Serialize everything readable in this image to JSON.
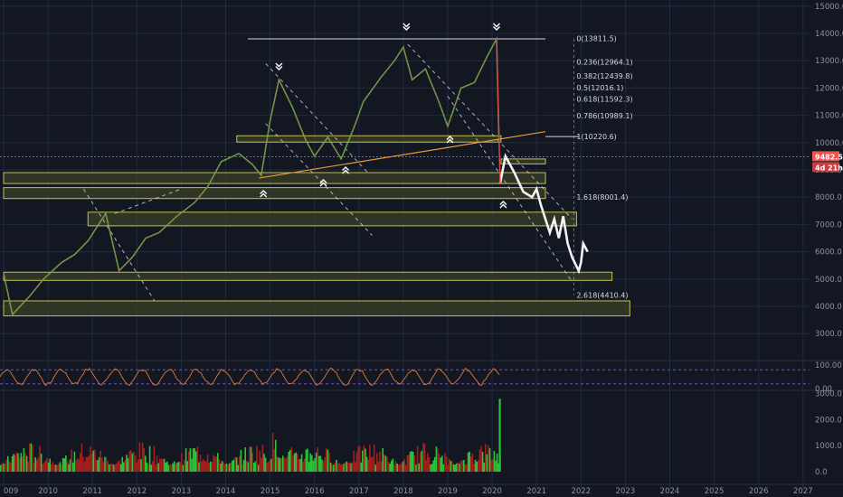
{
  "colors": {
    "background": "#131722",
    "grid": "#1f2a44",
    "price_line": "#ef5350",
    "zone_fill": "#3a3f25",
    "zone_stroke": "#c2c14e",
    "trend": "#e0e0e0",
    "trendline_orange": "#e89a3c",
    "rsi": "#e07b39",
    "vol_up": "#26c638",
    "vol_down": "#a31f1f",
    "arrow": "#ffffff"
  },
  "chart_data": [
    {
      "type": "line",
      "x_ticks": [
        "009",
        "2010",
        "2011",
        "2012",
        "2013",
        "2014",
        "2015",
        "2016",
        "2017",
        "2018",
        "2019",
        "2020",
        "2021",
        "2022",
        "2023",
        "2024",
        "2025",
        "2026",
        "2027"
      ],
      "y_ticks": [
        "15000.0",
        "14000.0",
        "13000.0",
        "12000.0",
        "11000.0",
        "10000.0",
        "9000.0",
        "8000.0",
        "7000.0",
        "6000.0",
        "5000.0",
        "4000.0",
        "3000.0"
      ],
      "price_path": [
        {
          "x": 2009.0,
          "y": 5200
        },
        {
          "x": 2009.2,
          "y": 3700
        },
        {
          "x": 2009.6,
          "y": 4400
        },
        {
          "x": 2009.9,
          "y": 5000
        },
        {
          "x": 2010.3,
          "y": 5600
        },
        {
          "x": 2010.6,
          "y": 5900
        },
        {
          "x": 2010.9,
          "y": 6400
        },
        {
          "x": 2011.3,
          "y": 7400
        },
        {
          "x": 2011.6,
          "y": 5300
        },
        {
          "x": 2011.9,
          "y": 5800
        },
        {
          "x": 2012.2,
          "y": 6500
        },
        {
          "x": 2012.5,
          "y": 6700
        },
        {
          "x": 2012.9,
          "y": 7300
        },
        {
          "x": 2013.3,
          "y": 7800
        },
        {
          "x": 2013.6,
          "y": 8400
        },
        {
          "x": 2013.9,
          "y": 9300
        },
        {
          "x": 2014.3,
          "y": 9600
        },
        {
          "x": 2014.6,
          "y": 9200
        },
        {
          "x": 2014.8,
          "y": 8800
        },
        {
          "x": 2015.0,
          "y": 10800
        },
        {
          "x": 2015.2,
          "y": 12300
        },
        {
          "x": 2015.5,
          "y": 11300
        },
        {
          "x": 2015.8,
          "y": 10100
        },
        {
          "x": 2016.0,
          "y": 9500
        },
        {
          "x": 2016.3,
          "y": 10200
        },
        {
          "x": 2016.6,
          "y": 9400
        },
        {
          "x": 2016.9,
          "y": 10600
        },
        {
          "x": 2017.1,
          "y": 11500
        },
        {
          "x": 2017.5,
          "y": 12400
        },
        {
          "x": 2017.8,
          "y": 13000
        },
        {
          "x": 2018.0,
          "y": 13500
        },
        {
          "x": 2018.2,
          "y": 12300
        },
        {
          "x": 2018.5,
          "y": 12700
        },
        {
          "x": 2018.8,
          "y": 11500
        },
        {
          "x": 2019.0,
          "y": 10600
        },
        {
          "x": 2019.3,
          "y": 12000
        },
        {
          "x": 2019.6,
          "y": 12200
        },
        {
          "x": 2019.9,
          "y": 13200
        },
        {
          "x": 2020.1,
          "y": 13800
        },
        {
          "x": 2020.15,
          "y": 10300
        }
      ],
      "recent_path": [
        {
          "x": 2020.18,
          "y": 8500
        },
        {
          "x": 2020.3,
          "y": 9500
        },
        {
          "x": 2020.5,
          "y": 8900
        },
        {
          "x": 2020.7,
          "y": 8200
        },
        {
          "x": 2020.9,
          "y": 8000
        },
        {
          "x": 2021.0,
          "y": 8300
        },
        {
          "x": 2021.1,
          "y": 7700
        },
        {
          "x": 2021.3,
          "y": 6700
        },
        {
          "x": 2021.4,
          "y": 7200
        },
        {
          "x": 2021.5,
          "y": 6500
        },
        {
          "x": 2021.6,
          "y": 7300
        },
        {
          "x": 2021.7,
          "y": 6300
        },
        {
          "x": 2021.8,
          "y": 5800
        },
        {
          "x": 2021.95,
          "y": 5300
        },
        {
          "x": 2022.0,
          "y": 5600
        },
        {
          "x": 2022.05,
          "y": 6300
        },
        {
          "x": 2022.15,
          "y": 6000
        }
      ],
      "last_price": "9482.5",
      "countdown": "4d 21h",
      "fib_levels": [
        {
          "label": "0(13811.5)",
          "value": 13811.5
        },
        {
          "label": "0.236(12964.1)",
          "value": 12964.1
        },
        {
          "label": "0.382(12439.8)",
          "value": 12439.8
        },
        {
          "label": "0.5(12016.1)",
          "value": 12016.1
        },
        {
          "label": "0.618(11592.3)",
          "value": 11592.3
        },
        {
          "label": "0.786(10989.1)",
          "value": 10989.1
        },
        {
          "label": "1(10220.6)",
          "value": 10220.6
        },
        {
          "label": "1.618(8001.4)",
          "value": 8001.4
        },
        {
          "label": "2.618(4410.4)",
          "value": 4410.4
        }
      ],
      "zones": [
        {
          "x0": 2014.25,
          "x1": 2020.2,
          "y0": 10020,
          "y1": 10250
        },
        {
          "x0": 2020.2,
          "x1": 2021.2,
          "y0": 9220,
          "y1": 9400
        },
        {
          "x0": 2009.0,
          "x1": 2021.2,
          "y0": 8500,
          "y1": 8900
        },
        {
          "x0": 2009.0,
          "x1": 2021.2,
          "y0": 7950,
          "y1": 8350
        },
        {
          "x0": 2010.9,
          "x1": 2021.9,
          "y0": 6950,
          "y1": 7450
        },
        {
          "x0": 2009.0,
          "x1": 2022.7,
          "y0": 4950,
          "y1": 5250
        },
        {
          "x0": 2009.0,
          "x1": 2023.1,
          "y0": 3650,
          "y1": 4200
        }
      ]
    },
    {
      "type": "line",
      "name": "oscillator",
      "y_ticks": [
        "100.00",
        "0.00"
      ],
      "ylim": [
        0,
        100
      ]
    },
    {
      "type": "bar",
      "name": "volume",
      "y_ticks": [
        "3000.0",
        "2000.0",
        "1000.0",
        "0.0"
      ],
      "ylim": [
        0,
        3000
      ],
      "spike": {
        "x": 2020.15,
        "value": 2800
      }
    }
  ]
}
